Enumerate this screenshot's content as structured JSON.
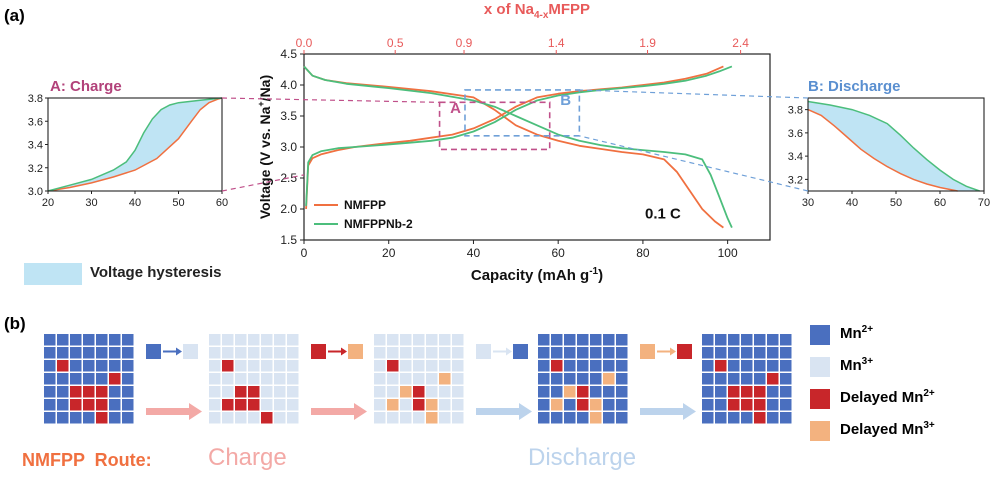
{
  "panel_a_label": "(a)",
  "panel_b_label": "(b)",
  "main": {
    "x_label": "Capacity (mAh g",
    "x_label_sup": "-1",
    "x_label_end": ")",
    "y_label": "Voltage (V vs. Na",
    "y_label_sup": "+",
    "y_label_end": "/Na)",
    "top_label_pre": "x of Na",
    "top_label_sub": "4-x",
    "top_label_post": "MFPP",
    "rate": "0.1 C",
    "box_a": "A",
    "box_b": "B",
    "x_ticks": [
      "0",
      "20",
      "40",
      "60",
      "80",
      "100"
    ],
    "y_ticks": [
      "1.5",
      "2.0",
      "2.5",
      "3.0",
      "3.5",
      "4.0",
      "4.5"
    ],
    "top_ticks": [
      "0.0",
      "0.5",
      "0.9",
      "1.4",
      "1.9",
      "2.4"
    ]
  },
  "legend": [
    {
      "name": "NMFPP",
      "color": "#f07040"
    },
    {
      "name": "NMFPPNb-2",
      "color": "#4cbe7c"
    }
  ],
  "inset_a": {
    "title": "A: Charge",
    "x_ticks": [
      "20",
      "30",
      "40",
      "50",
      "60"
    ],
    "y_ticks": [
      "3.0",
      "3.2",
      "3.4",
      "3.6",
      "3.8"
    ]
  },
  "inset_b": {
    "title": "B:  Discharge",
    "x_ticks": [
      "30",
      "40",
      "50",
      "60",
      "70"
    ],
    "y_ticks": [
      "3.2",
      "3.4",
      "3.6",
      "3.8"
    ]
  },
  "hysteresis_label": "Voltage hysteresis",
  "route": {
    "prefix": "NMFPP  Route:",
    "charge": "Charge",
    "discharge": "Discharge"
  },
  "b_legend": [
    {
      "base": "Mn",
      "sup": "2+",
      "prefix": "",
      "color": "#4a6fbf"
    },
    {
      "base": "Mn",
      "sup": "3+",
      "prefix": "",
      "color": "#d9e4f2"
    },
    {
      "base": "Mn",
      "sup": "2+",
      "prefix": "Delayed ",
      "color": "#c8262a"
    },
    {
      "base": "Mn",
      "sup": "3+",
      "prefix": "Delayed ",
      "color": "#f3b27f"
    }
  ],
  "colors": {
    "nmfpp": "#f07040",
    "nb2": "#4cbe7c",
    "top_axis": "#e85a5a",
    "box_a": "#c0508a",
    "box_b": "#6fa0d8",
    "hysteresis": "#bfe4f4",
    "mn2": "#4a6fbf",
    "mn3": "#d9e4f2",
    "delayed_mn2": "#c8262a",
    "delayed_mn3": "#f3b27f",
    "route_prefix": "#f07040",
    "charge": "#f3a9a6",
    "discharge": "#bcd3ec"
  },
  "chart_data": [
    {
      "type": "line",
      "xlabel": "Capacity (mAh g-1)",
      "ylabel": "Voltage (V vs. Na+/Na)",
      "xlim": [
        0,
        110
      ],
      "ylim": [
        1.5,
        4.5
      ],
      "top_axis": {
        "label": "x of Na4-xMFPP",
        "ticks": [
          "0.0",
          "0.5",
          "0.9",
          "1.4",
          "1.9",
          "2.4"
        ]
      },
      "grid": false,
      "legend_position": "bottom-left",
      "annotations": [
        "0.1 C",
        "A",
        "B"
      ],
      "series": [
        {
          "name": "NMFPP",
          "segment": "charge",
          "x": [
            0.5,
            1,
            2,
            4,
            8,
            12,
            18,
            25,
            30,
            35,
            40,
            45,
            50,
            55,
            60,
            65,
            70,
            75,
            80,
            85,
            90,
            95,
            99
          ],
          "y": [
            2.0,
            2.7,
            2.82,
            2.88,
            2.95,
            3.0,
            3.05,
            3.1,
            3.15,
            3.2,
            3.3,
            3.45,
            3.65,
            3.8,
            3.86,
            3.9,
            3.93,
            3.96,
            4.0,
            4.04,
            4.1,
            4.18,
            4.3
          ]
        },
        {
          "name": "NMFPP",
          "segment": "discharge",
          "x": [
            0,
            2,
            5,
            10,
            20,
            30,
            40,
            45,
            50,
            55,
            60,
            65,
            70,
            75,
            80,
            85,
            88,
            91,
            94,
            97,
            99
          ],
          "y": [
            4.3,
            4.15,
            4.08,
            4.03,
            3.97,
            3.9,
            3.8,
            3.6,
            3.35,
            3.2,
            3.1,
            3.02,
            2.97,
            2.92,
            2.88,
            2.8,
            2.6,
            2.3,
            2.0,
            1.8,
            1.7
          ]
        },
        {
          "name": "NMFPPNb-2",
          "segment": "charge",
          "x": [
            0.5,
            1,
            2,
            4,
            8,
            12,
            18,
            25,
            30,
            35,
            40,
            45,
            50,
            55,
            60,
            65,
            70,
            75,
            80,
            85,
            90,
            95,
            98,
            101
          ],
          "y": [
            2.05,
            2.75,
            2.87,
            2.93,
            2.98,
            3.0,
            3.03,
            3.07,
            3.1,
            3.15,
            3.25,
            3.4,
            3.6,
            3.75,
            3.83,
            3.88,
            3.92,
            3.95,
            3.98,
            4.02,
            4.07,
            4.15,
            4.22,
            4.3
          ]
        },
        {
          "name": "NMFPPNb-2",
          "segment": "discharge",
          "x": [
            0,
            2,
            5,
            10,
            20,
            30,
            40,
            45,
            50,
            55,
            60,
            65,
            70,
            75,
            80,
            85,
            90,
            94,
            96,
            98,
            100,
            101
          ],
          "y": [
            4.3,
            4.15,
            4.08,
            4.02,
            3.95,
            3.87,
            3.75,
            3.65,
            3.5,
            3.35,
            3.2,
            3.1,
            3.03,
            2.98,
            2.95,
            2.92,
            2.88,
            2.8,
            2.55,
            2.2,
            1.85,
            1.7
          ]
        }
      ]
    },
    {
      "type": "area",
      "title": "A: Charge",
      "xlim": [
        20,
        60
      ],
      "ylim": [
        3.0,
        3.8
      ],
      "series": [
        {
          "name": "NMFPP",
          "x": [
            20,
            25,
            30,
            35,
            40,
            45,
            50,
            53,
            55,
            57,
            59,
            60
          ],
          "y": [
            3.0,
            3.03,
            3.07,
            3.12,
            3.18,
            3.28,
            3.45,
            3.6,
            3.7,
            3.76,
            3.79,
            3.8
          ]
        },
        {
          "name": "NMFPPNb-2",
          "x": [
            20,
            25,
            30,
            35,
            38,
            40,
            42,
            44,
            46,
            48,
            50,
            55,
            60
          ],
          "y": [
            3.0,
            3.05,
            3.1,
            3.18,
            3.25,
            3.35,
            3.5,
            3.62,
            3.7,
            3.74,
            3.76,
            3.78,
            3.8
          ]
        }
      ]
    },
    {
      "type": "area",
      "title": "B:  Discharge",
      "xlim": [
        30,
        70
      ],
      "ylim": [
        3.1,
        3.9
      ],
      "series": [
        {
          "name": "NMFPP",
          "x": [
            30,
            33,
            36,
            39,
            42,
            45,
            48,
            51,
            54,
            57,
            60,
            64
          ],
          "y": [
            3.8,
            3.75,
            3.66,
            3.56,
            3.46,
            3.38,
            3.31,
            3.25,
            3.2,
            3.16,
            3.13,
            3.1
          ]
        },
        {
          "name": "NMFPPNb-2",
          "x": [
            30,
            35,
            40,
            44,
            48,
            51,
            54,
            57,
            60,
            63,
            66,
            69
          ],
          "y": [
            3.87,
            3.84,
            3.8,
            3.75,
            3.68,
            3.58,
            3.47,
            3.37,
            3.28,
            3.2,
            3.14,
            3.1
          ]
        }
      ]
    }
  ],
  "grids": [
    {
      "mn2": [
        [
          2,
          1
        ],
        [
          3,
          5
        ],
        [
          4,
          2
        ],
        [
          4,
          3
        ],
        [
          4,
          4
        ],
        [
          5,
          2
        ],
        [
          5,
          3
        ],
        [
          5,
          4
        ],
        [
          6,
          4
        ]
      ],
      "delayed_mn3": []
    },
    {
      "mn2": [],
      "delayed_mn2": [
        [
          2,
          1
        ],
        [
          4,
          2
        ],
        [
          4,
          3
        ],
        [
          5,
          1
        ],
        [
          5,
          2
        ],
        [
          5,
          3
        ],
        [
          6,
          4
        ]
      ],
      "delayed_mn3": []
    },
    {
      "mn2": [],
      "delayed_mn2": [
        [
          2,
          1
        ],
        [
          4,
          3
        ],
        [
          5,
          3
        ]
      ],
      "delayed_mn3": [
        [
          3,
          5
        ],
        [
          4,
          2
        ],
        [
          5,
          1
        ],
        [
          5,
          4
        ],
        [
          6,
          4
        ]
      ]
    },
    {
      "mn2": "all",
      "delayed_mn2": [
        [
          2,
          1
        ],
        [
          4,
          3
        ],
        [
          5,
          3
        ]
      ],
      "delayed_mn3": [
        [
          3,
          5
        ],
        [
          4,
          2
        ],
        [
          5,
          1
        ],
        [
          5,
          4
        ],
        [
          6,
          4
        ]
      ]
    },
    {
      "mn2": "all",
      "delayed_mn2": [
        [
          2,
          1
        ],
        [
          3,
          5
        ],
        [
          4,
          2
        ],
        [
          4,
          3
        ],
        [
          4,
          4
        ],
        [
          5,
          2
        ],
        [
          5,
          3
        ],
        [
          5,
          4
        ],
        [
          6,
          4
        ]
      ],
      "delayed_mn3": []
    }
  ]
}
